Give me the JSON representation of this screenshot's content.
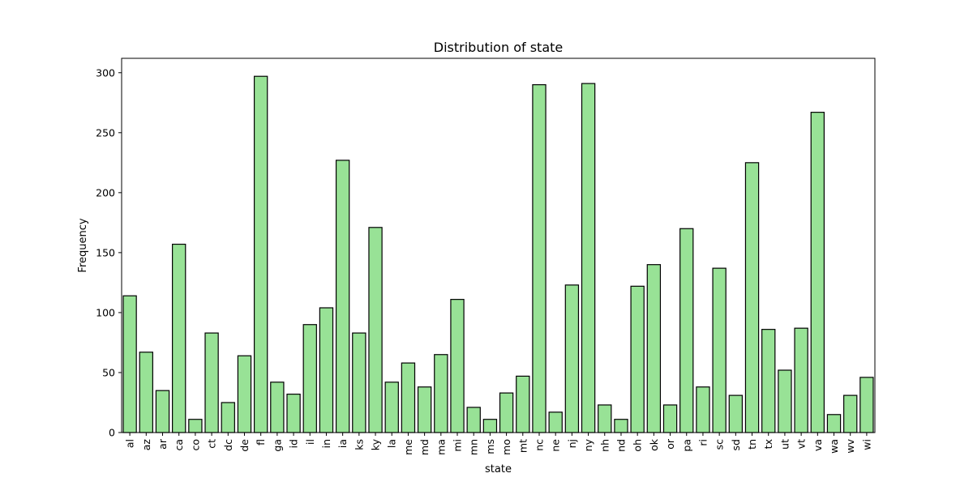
{
  "chart_data": {
    "type": "bar",
    "title": "Distribution of state",
    "xlabel": "state",
    "ylabel": "Frequency",
    "ylim": [
      0,
      312
    ],
    "yticks": [
      0,
      50,
      100,
      150,
      200,
      250,
      300
    ],
    "grid": false,
    "bar_color": "#98e296",
    "edge_color": "#000000",
    "categories": [
      "al",
      "az",
      "ar",
      "ca",
      "co",
      "ct",
      "dc",
      "de",
      "fl",
      "ga",
      "id",
      "il",
      "in",
      "ia",
      "ks",
      "ky",
      "la",
      "me",
      "md",
      "ma",
      "mi",
      "mn",
      "ms",
      "mo",
      "mt",
      "nc",
      "ne",
      "nj",
      "ny",
      "nh",
      "nd",
      "oh",
      "ok",
      "or",
      "pa",
      "ri",
      "sc",
      "sd",
      "tn",
      "tx",
      "ut",
      "vt",
      "va",
      "wa",
      "wv",
      "wi"
    ],
    "values": [
      114,
      67,
      35,
      157,
      11,
      83,
      25,
      64,
      297,
      42,
      32,
      90,
      104,
      227,
      83,
      171,
      42,
      58,
      38,
      65,
      111,
      21,
      11,
      33,
      47,
      290,
      17,
      123,
      291,
      23,
      11,
      122,
      140,
      23,
      170,
      38,
      137,
      31,
      225,
      86,
      52,
      87,
      267,
      15,
      31,
      46
    ]
  }
}
